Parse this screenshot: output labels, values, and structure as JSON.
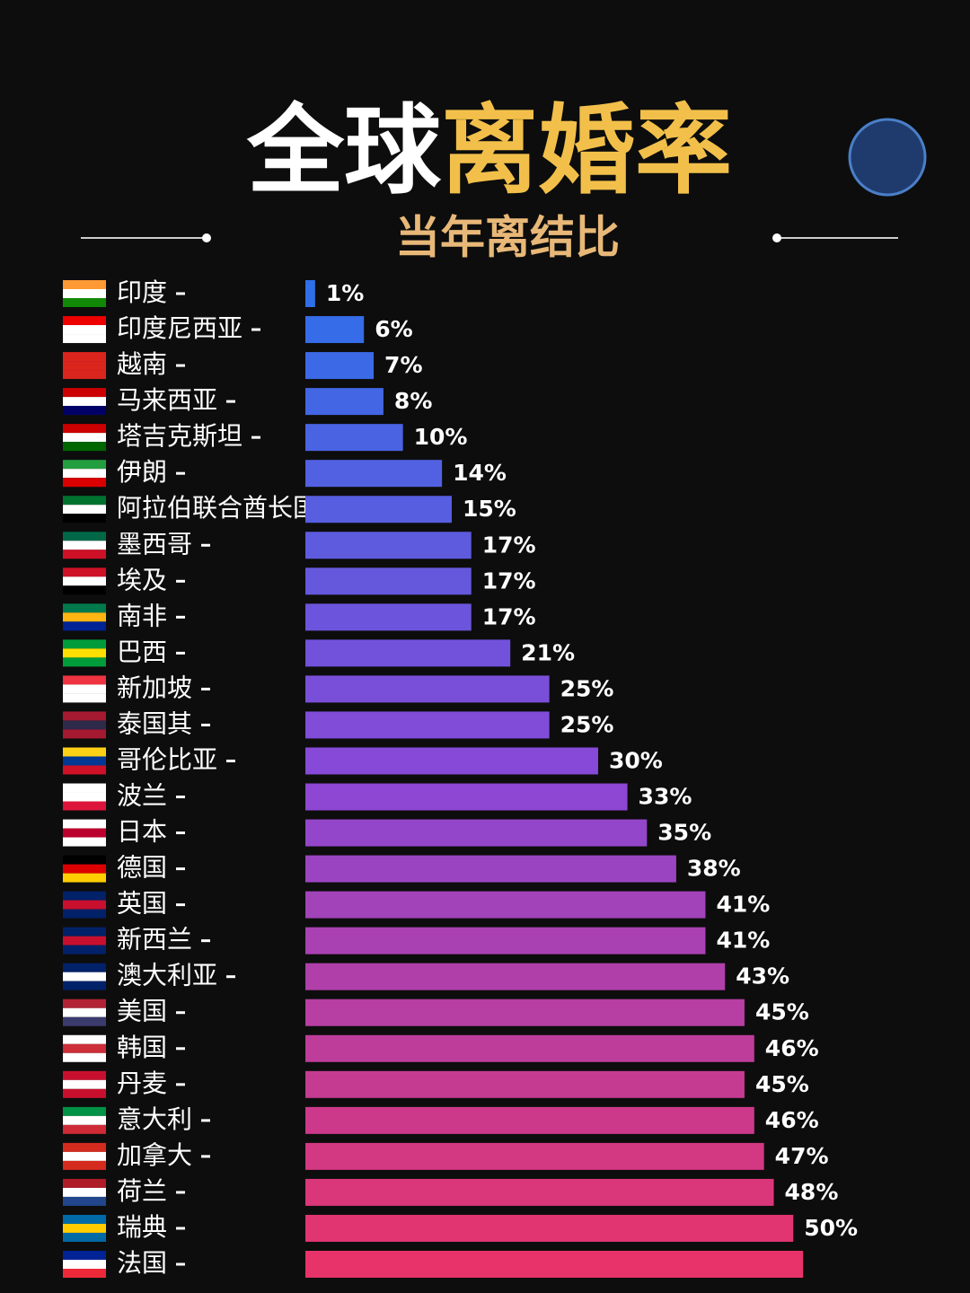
{
  "chart_data": {
    "type": "bar",
    "orientation": "horizontal",
    "title_parts": [
      "全球",
      "离婚率"
    ],
    "subtitle": "当年离结比",
    "categories": [
      "印度",
      "印度尼西亚",
      "越南",
      "马来西亚",
      "塔吉克斯坦",
      "伊朗",
      "阿拉伯联合酋长国",
      "墨西哥",
      "埃及",
      "南非",
      "巴西",
      "新加坡",
      "泰国其",
      "哥伦比亚",
      "波兰",
      "日本",
      "德国",
      "英国",
      "新西兰",
      "澳大利亚",
      "美国",
      "韩国",
      "丹麦",
      "意大利",
      "加拿大",
      "荷兰",
      "瑞典",
      "法国"
    ],
    "values": [
      1,
      6,
      7,
      8,
      10,
      14,
      15,
      17,
      17,
      17,
      21,
      25,
      25,
      30,
      33,
      35,
      38,
      41,
      41,
      43,
      45,
      46,
      45,
      46,
      47,
      48,
      50,
      51
    ],
    "value_labels": [
      "1%",
      "6%",
      "7%",
      "8%",
      "10%",
      "14%",
      "15%",
      "17%",
      "17%",
      "17%",
      "21%",
      "25%",
      "25%",
      "30%",
      "33%",
      "35%",
      "38%",
      "41%",
      "41%",
      "43%",
      "45%",
      "46%",
      "45%",
      "46%",
      "47%",
      "48%",
      "50%",
      null
    ],
    "colors": [
      "#2f6fe8",
      "#8a48d6",
      "#e8336a"
    ],
    "xlim": [
      0,
      52
    ]
  }
}
